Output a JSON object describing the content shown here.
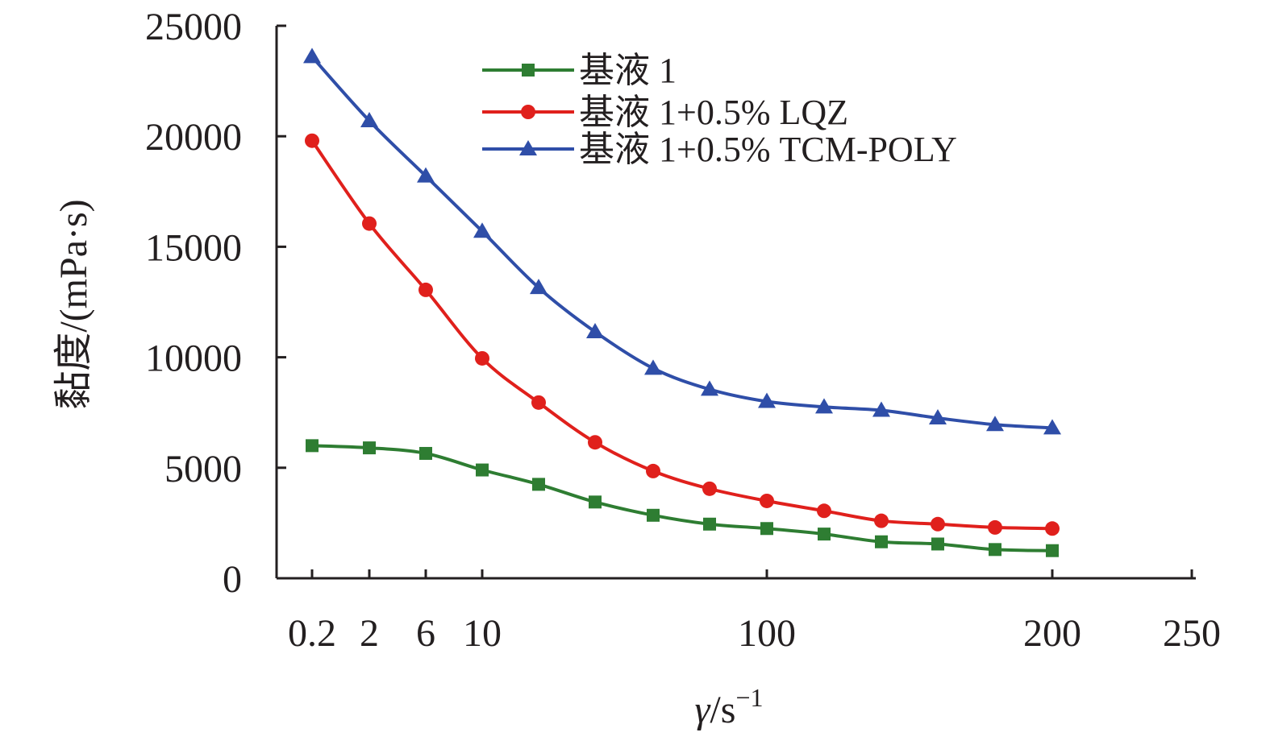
{
  "chart_data": {
    "type": "line",
    "ylabel": "黏度/(mPa·s)",
    "xlabel": {
      "symbol": "γ",
      "unit": "/s",
      "exponent": "−1"
    },
    "ylim": [
      0,
      25000
    ],
    "yticks": [
      "0",
      "5000",
      "10000",
      "15000",
      "20000",
      "25000"
    ],
    "xticks": [
      "0.2",
      "2",
      "6",
      "10",
      "100",
      "200",
      "250"
    ],
    "x": [
      0.2,
      2,
      6,
      10,
      20,
      30,
      50,
      70,
      100,
      120,
      140,
      160,
      180,
      200
    ],
    "series": [
      {
        "name": "基液 1",
        "color": "#2e7d32",
        "marker": "square",
        "values": [
          6000,
          5900,
          5650,
          4900,
          4250,
          3450,
          2850,
          2450,
          2250,
          2000,
          1650,
          1550,
          1300,
          1250
        ]
      },
      {
        "name": "基液 1+0.5% LQZ",
        "color": "#e0201c",
        "marker": "circle",
        "values": [
          19800,
          16050,
          13050,
          9950,
          7950,
          6150,
          4850,
          4050,
          3500,
          3050,
          2600,
          2450,
          2300,
          2250
        ]
      },
      {
        "name": "基液 1+0.5% TCM-POLY",
        "color": "#2f4ea8",
        "marker": "triangle",
        "values": [
          23600,
          20700,
          18200,
          15700,
          13150,
          11150,
          9500,
          8550,
          8000,
          7750,
          7600,
          7250,
          6950,
          6800
        ]
      }
    ],
    "legend": "top-center",
    "grid": false
  }
}
